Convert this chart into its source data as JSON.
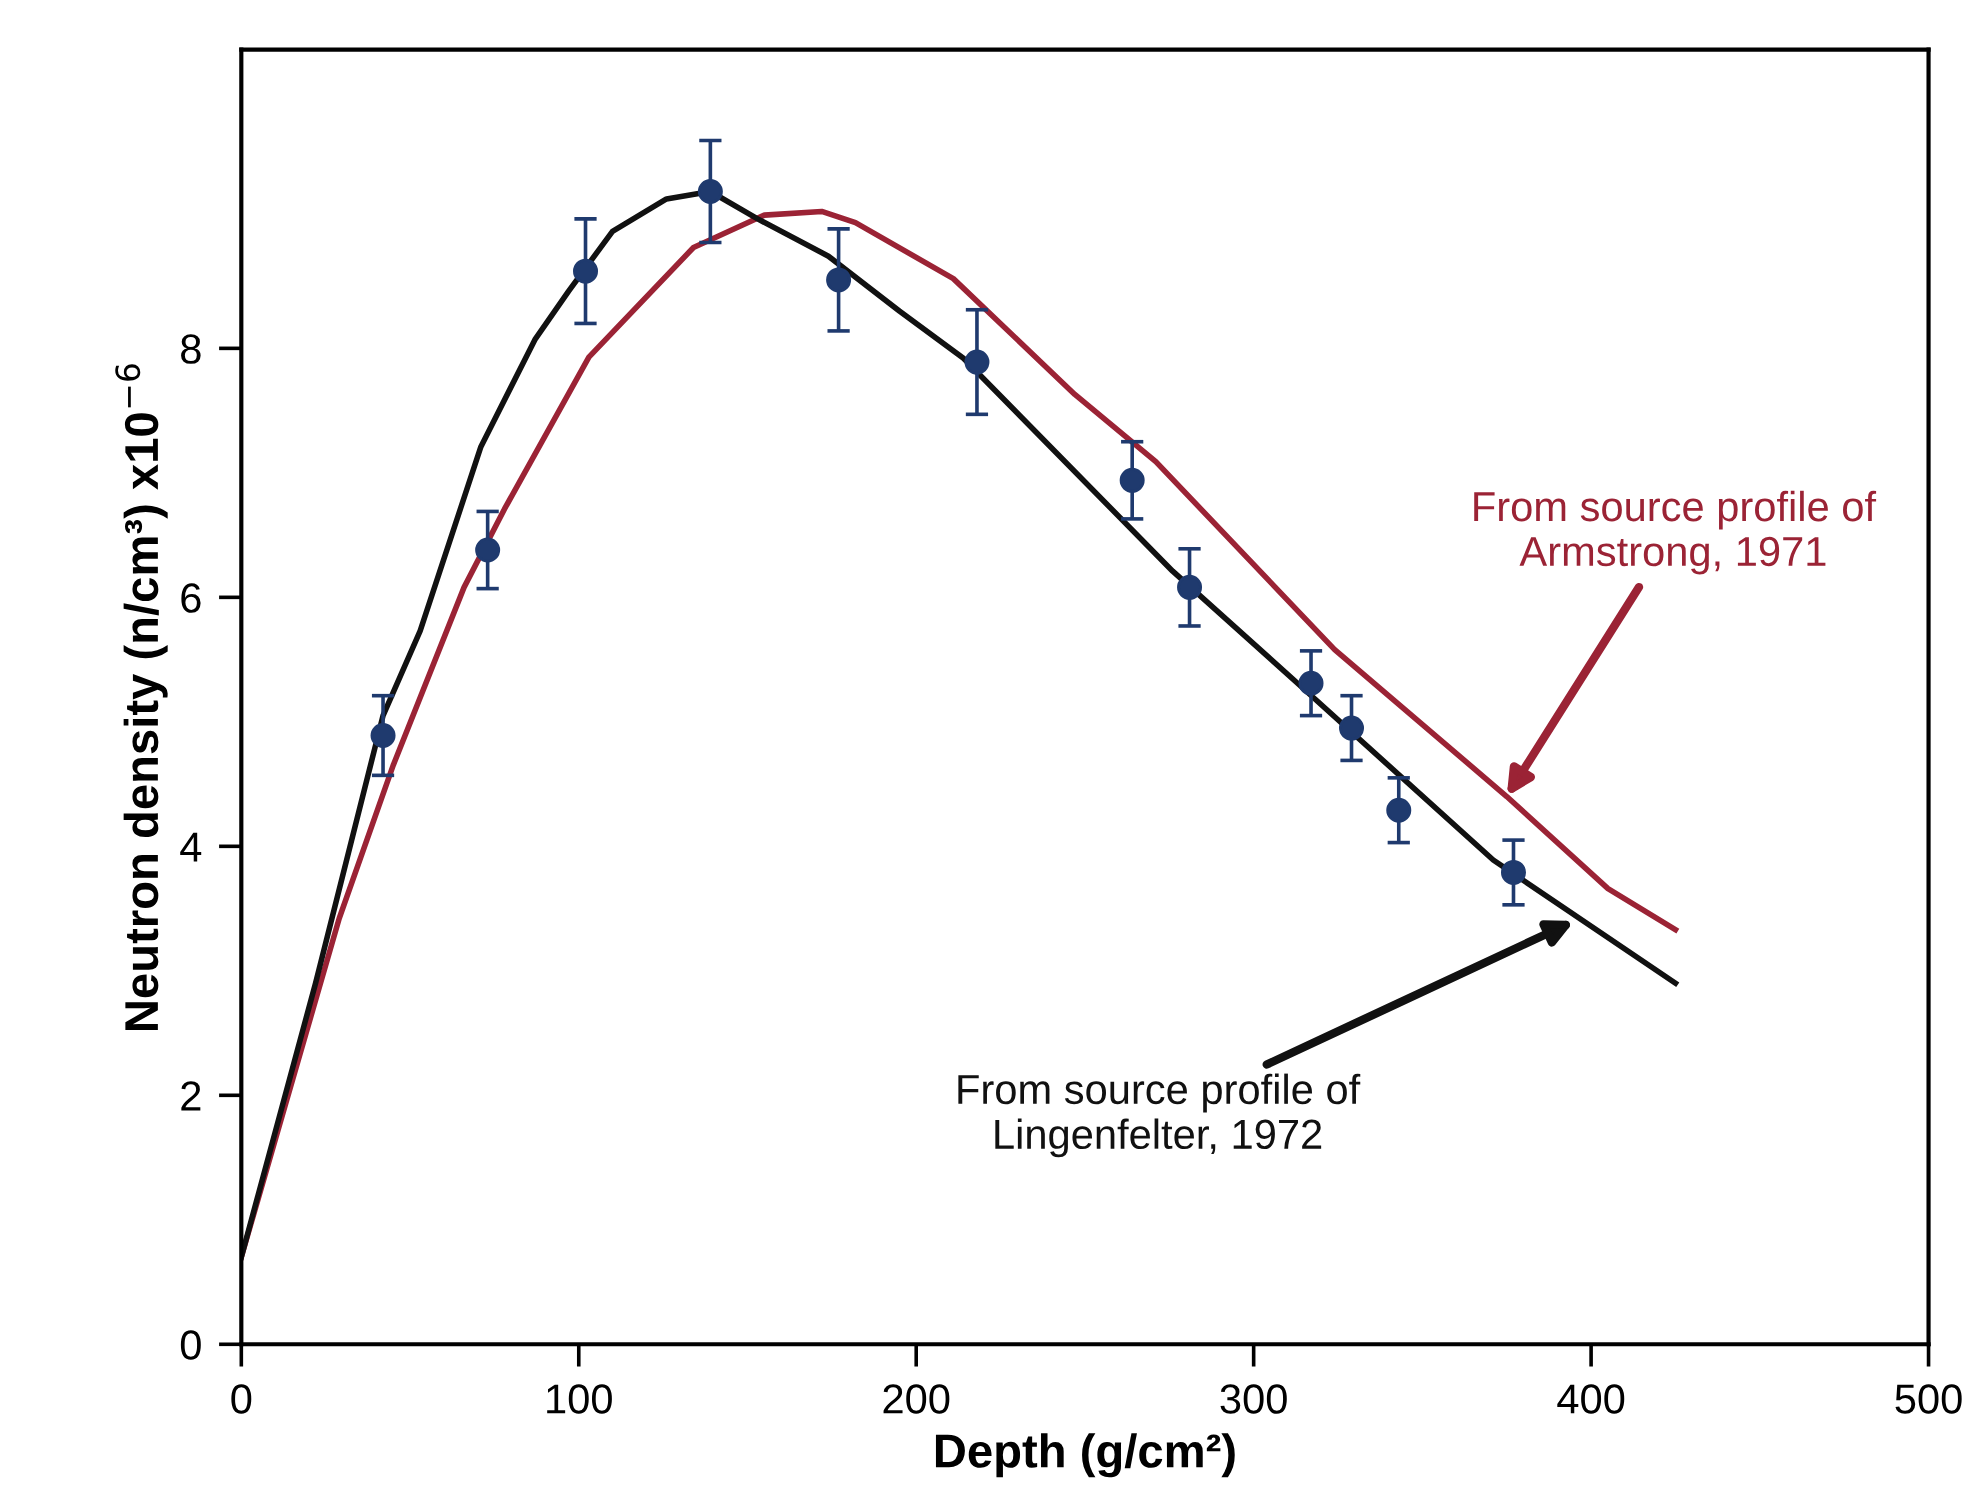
{
  "chart_data": {
    "type": "line",
    "xlabel": "Depth (g/cm²)",
    "ylabel": "Neutron density (n/cm³) x10$^{−6}$",
    "xlim": [
      0,
      500
    ],
    "xticks": [
      0,
      100,
      200,
      300,
      400,
      500
    ],
    "ylim": [
      0,
      10.4
    ],
    "yticks": [
      0,
      2,
      4,
      6,
      8
    ],
    "grid": false,
    "legend": false,
    "line_style": "solid",
    "series": [
      {
        "color": "#9b2335",
        "marker": "none",
        "x": [
          0,
          29,
          45,
          66,
          78,
          103,
          134,
          155,
          172,
          182,
          211,
          247,
          271,
          324,
          375,
          405,
          425
        ],
        "values": [
          0.7,
          3.42,
          4.65,
          6.08,
          6.71,
          7.93,
          8.81,
          9.07,
          9.1,
          9.01,
          8.56,
          7.63,
          7.09,
          5.58,
          4.4,
          3.66,
          3.33
        ]
      },
      {
        "color": "#111111",
        "marker": "none",
        "x": [
          0,
          22,
          42,
          53,
          71,
          87,
          97,
          110,
          126,
          139,
          153,
          174,
          195,
          214,
          276,
          313,
          371,
          425
        ],
        "values": [
          0.7,
          2.9,
          5.05,
          5.73,
          7.21,
          8.07,
          8.46,
          8.94,
          9.2,
          9.26,
          9.04,
          8.74,
          8.3,
          7.92,
          6.21,
          5.31,
          3.89,
          2.9
        ]
      },
      {
        "type": "scatter",
        "color": "#1f3a6e",
        "marker": "circle",
        "x": [
          42,
          73,
          102,
          139,
          177,
          218,
          264,
          281,
          317,
          329,
          343,
          377
        ],
        "values": [
          4.89,
          6.38,
          8.62,
          9.26,
          8.55,
          7.89,
          6.94,
          6.08,
          5.31,
          4.95,
          4.29,
          3.79
        ],
        "errors": [
          0.32,
          0.31,
          0.42,
          0.41,
          0.41,
          0.42,
          0.31,
          0.31,
          0.26,
          0.26,
          0.26,
          0.26
        ]
      }
    ],
    "annotations": [
      {
        "text": "From source profile of\nArmstrong, 1971",
        "x": 375,
        "y": 4.4
      },
      {
        "text": "From source profile of\nLingenfelter, 1972",
        "x": 395,
        "y": 3.4
      }
    ]
  }
}
